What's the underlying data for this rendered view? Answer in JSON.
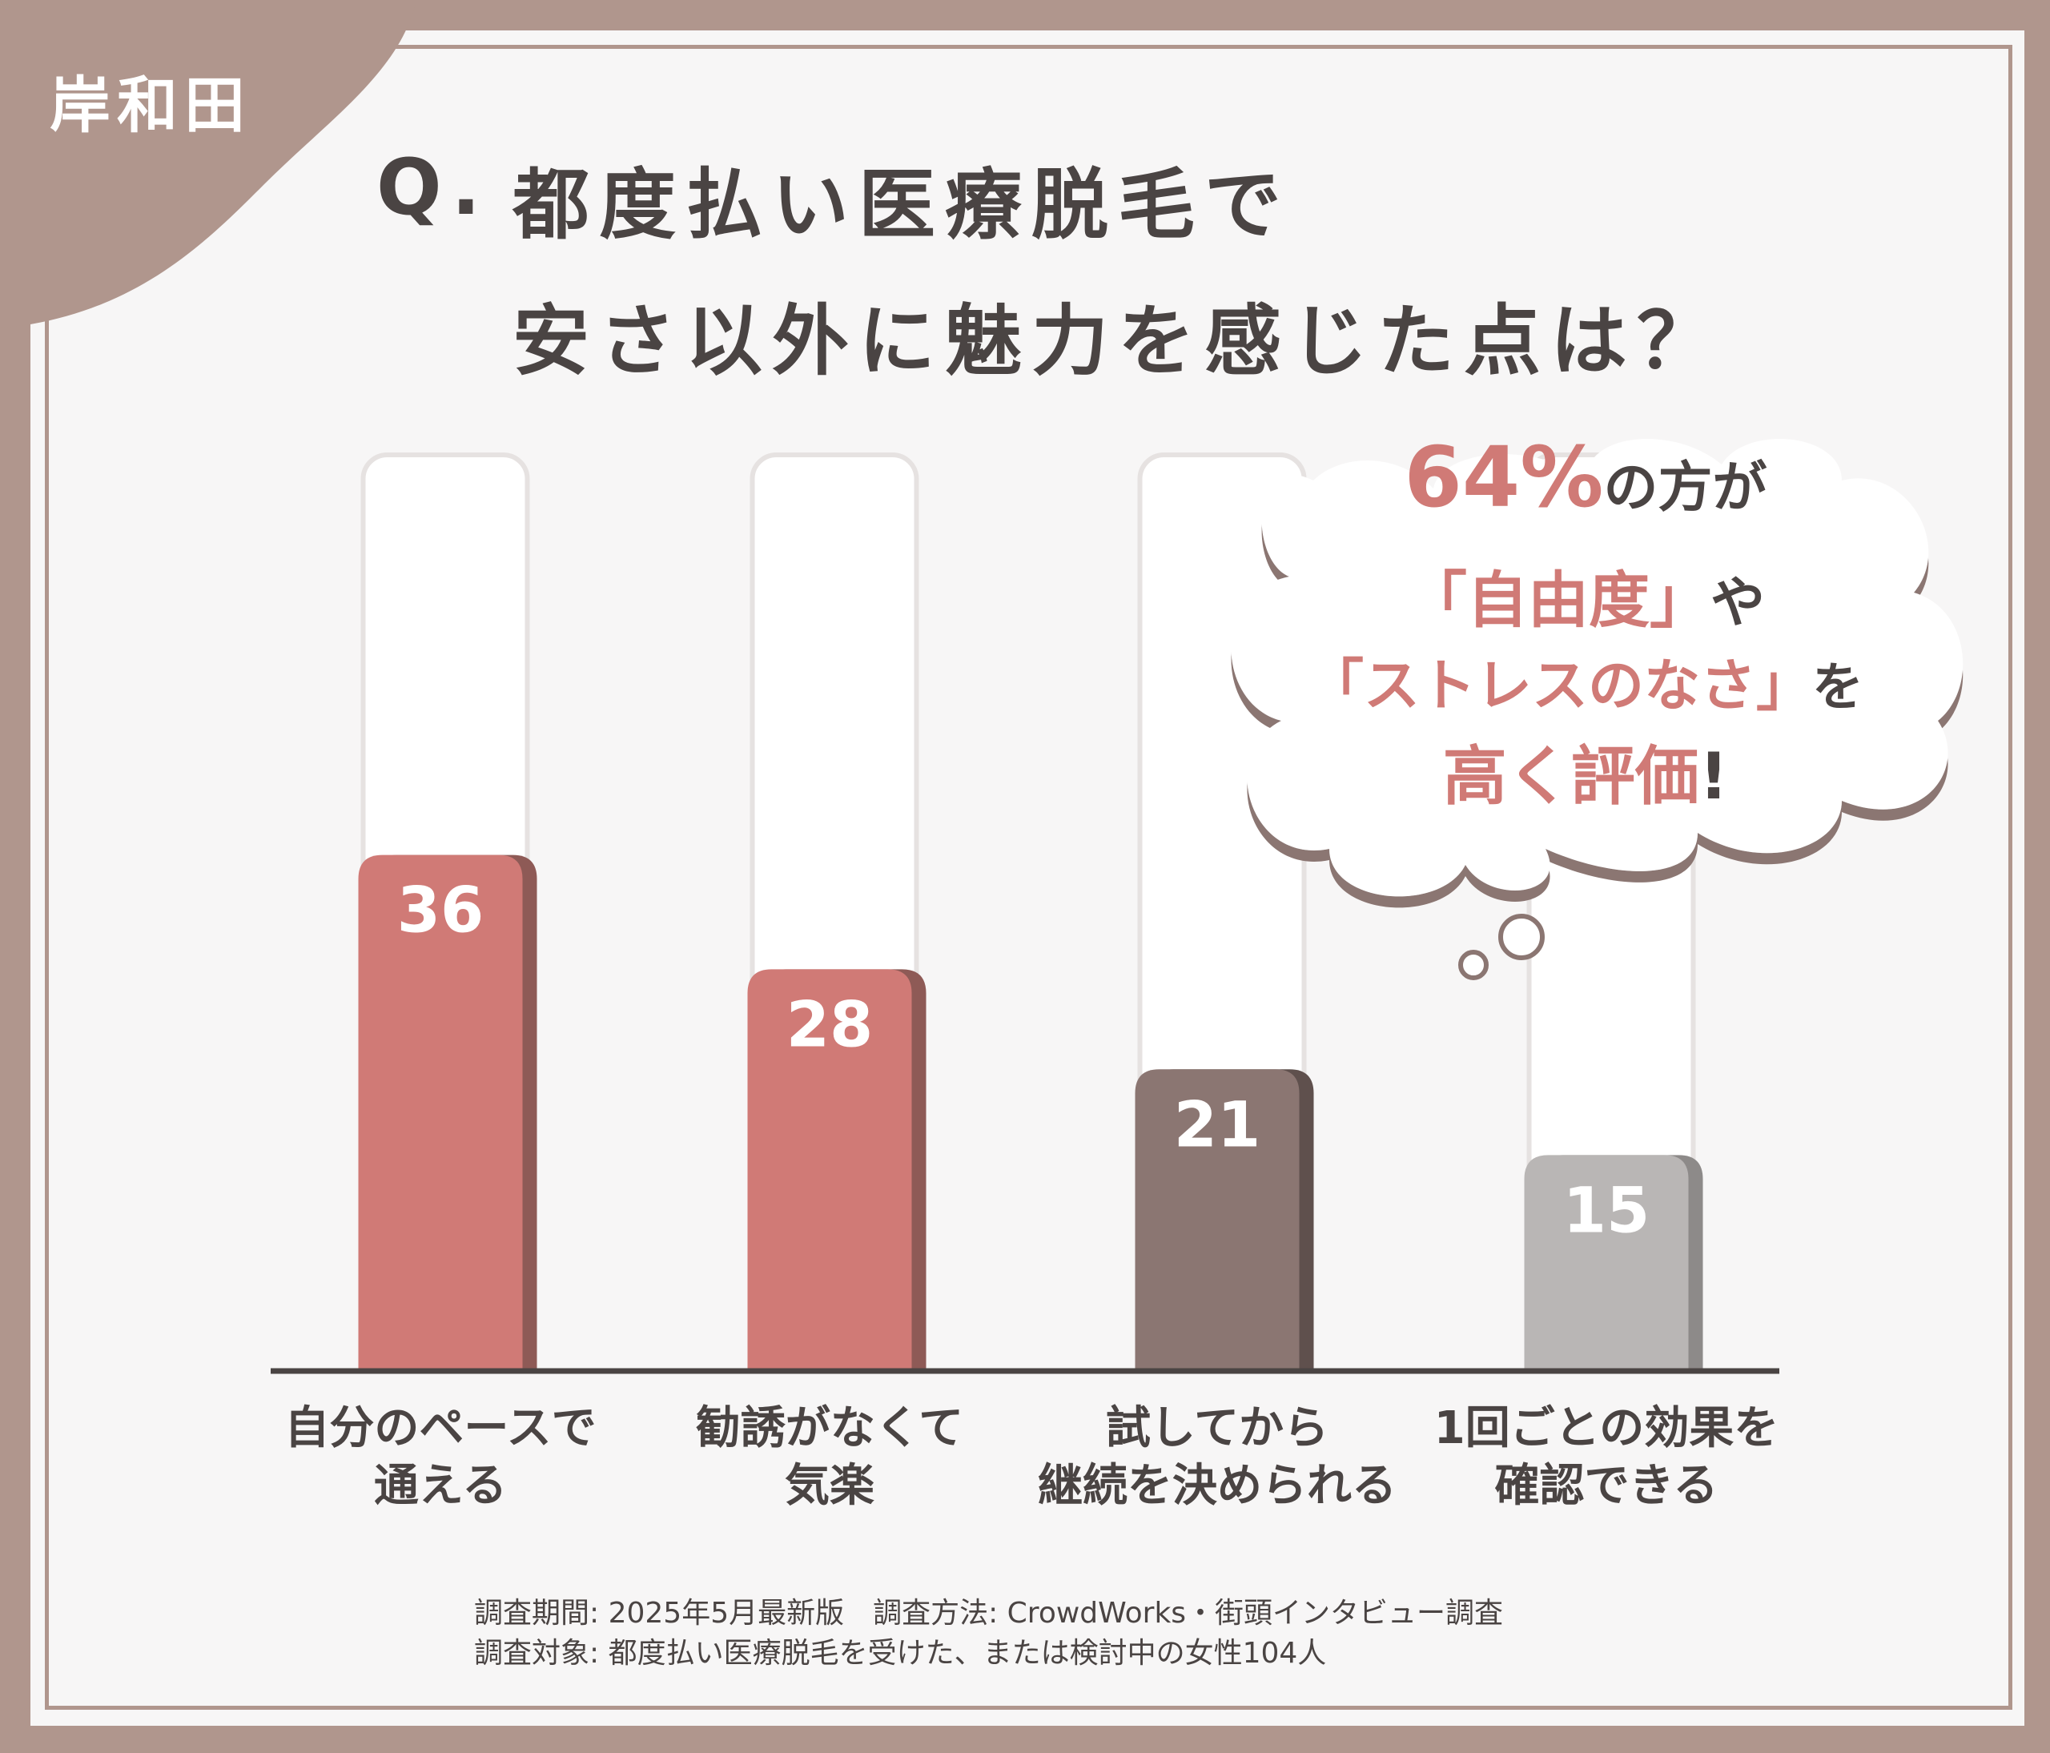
{
  "brand": "岸和田",
  "question": {
    "prefix": "Q.",
    "line1": "都度払い医療脱毛で",
    "line2": "安さ以外に魅力を感じた点は？"
  },
  "callout": {
    "percent": "64%",
    "line1_rest": "の方が",
    "line2_accent": "「自由度」",
    "line2_rest": "や",
    "line3_accent": "「ストレスのなさ」",
    "line3_rest": "を",
    "line4_accent": "高く評価",
    "line4_rest": "!"
  },
  "chart_data": {
    "type": "bar",
    "categories": [
      [
        "自分のペースで",
        "通える"
      ],
      [
        "勧誘がなくて",
        "気楽"
      ],
      [
        "試してから",
        "継続を決められる"
      ],
      [
        "1回ごとの効果を",
        "確認できる"
      ]
    ],
    "values": [
      36,
      28,
      21,
      15
    ],
    "value_labels": [
      "36",
      "28",
      "21",
      "15"
    ],
    "bar_colors": [
      "#d07a76",
      "#d07a76",
      "#8b7672",
      "#b9b6b5"
    ],
    "bar_shadow_colors": [
      "#8e5a56",
      "#8e5a56",
      "#5f504d",
      "#8d8a89"
    ],
    "ylim": [
      0,
      64
    ],
    "title": "",
    "xlabel": "",
    "ylabel": "",
    "grid": false,
    "legend": "none"
  },
  "footnote": {
    "line1": "調査期間: 2025年5月最新版　調査方法: CrowdWorks・街頭インタビュー調査",
    "line2": "調査対象: 都度払い医療脱毛を受けた、または検討中の女性104人"
  },
  "colors": {
    "frame": "#b0968d",
    "accent": "#d07a76",
    "text": "#4a4443"
  }
}
